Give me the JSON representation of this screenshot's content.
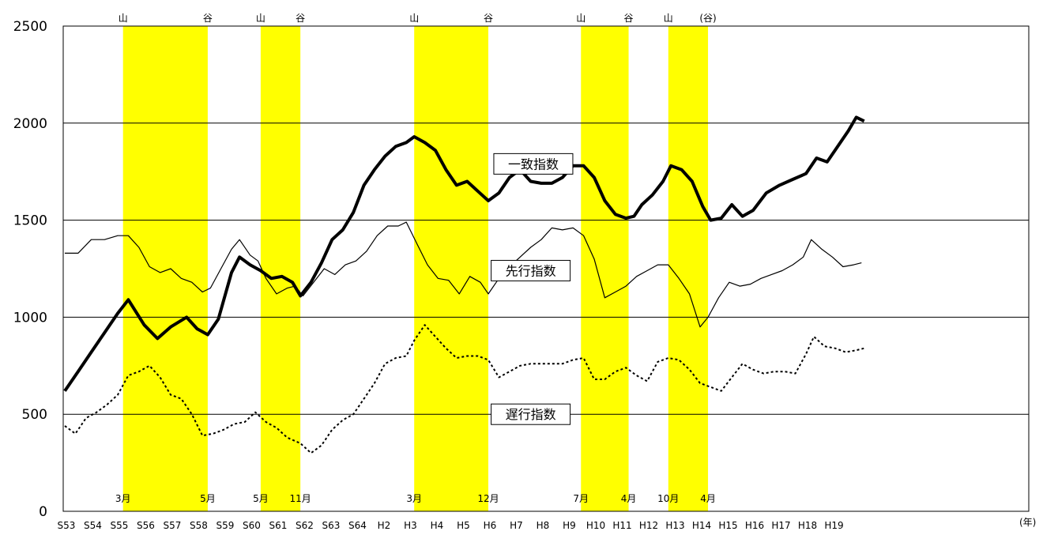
{
  "chart_data": {
    "type": "line",
    "ylim": [
      0,
      2500
    ],
    "yticks": [
      0,
      500,
      1000,
      1500,
      2000,
      2500
    ],
    "grid_y": [
      500,
      1000,
      1500,
      2000
    ],
    "x_unit_label": "(年)",
    "categories": [
      "S53",
      "S54",
      "S55",
      "S56",
      "S57",
      "S58",
      "S59",
      "S60",
      "S61",
      "S62",
      "S63",
      "S64",
      "H2",
      "H3",
      "H4",
      "H5",
      "H6",
      "H7",
      "H8",
      "H9",
      "H10",
      "H11",
      "H12",
      "H13",
      "H14",
      "H15",
      "H16",
      "H17",
      "H18",
      "H19"
    ],
    "recession_bands": [
      {
        "peak_label": "山",
        "trough_label": "谷",
        "start": 2.2,
        "end": 5.4,
        "start_month": "3月",
        "end_month": "5月"
      },
      {
        "peak_label": "山",
        "trough_label": "谷",
        "start": 7.4,
        "end": 8.9,
        "start_month": "5月",
        "end_month": "11月"
      },
      {
        "peak_label": "山",
        "trough_label": "谷",
        "start": 13.2,
        "end": 16.0,
        "start_month": "3月",
        "end_month": "12月"
      },
      {
        "peak_label": "山",
        "trough_label": "谷",
        "start": 19.5,
        "end": 21.3,
        "start_month": "7月",
        "end_month": "4月"
      },
      {
        "peak_label": "山",
        "trough_label": "(谷)",
        "start": 22.8,
        "end": 24.3,
        "start_month": "10月",
        "end_month": "4月"
      }
    ],
    "series": [
      {
        "name": "一致指数",
        "style": "thick",
        "color": "#000000",
        "points": [
          [
            0,
            620
          ],
          [
            0.5,
            720
          ],
          [
            1.0,
            820
          ],
          [
            1.5,
            920
          ],
          [
            2.0,
            1020
          ],
          [
            2.4,
            1090
          ],
          [
            3.0,
            960
          ],
          [
            3.5,
            890
          ],
          [
            4.0,
            950
          ],
          [
            4.6,
            1000
          ],
          [
            5.0,
            940
          ],
          [
            5.4,
            910
          ],
          [
            5.8,
            990
          ],
          [
            6.3,
            1230
          ],
          [
            6.6,
            1310
          ],
          [
            7.0,
            1270
          ],
          [
            7.4,
            1240
          ],
          [
            7.8,
            1200
          ],
          [
            8.2,
            1210
          ],
          [
            8.6,
            1180
          ],
          [
            8.9,
            1110
          ],
          [
            9.3,
            1180
          ],
          [
            9.7,
            1280
          ],
          [
            10.1,
            1400
          ],
          [
            10.5,
            1450
          ],
          [
            10.9,
            1540
          ],
          [
            11.3,
            1680
          ],
          [
            11.7,
            1760
          ],
          [
            12.1,
            1830
          ],
          [
            12.5,
            1880
          ],
          [
            12.9,
            1900
          ],
          [
            13.2,
            1930
          ],
          [
            13.6,
            1900
          ],
          [
            14.0,
            1860
          ],
          [
            14.4,
            1760
          ],
          [
            14.8,
            1680
          ],
          [
            15.2,
            1700
          ],
          [
            15.6,
            1650
          ],
          [
            16.0,
            1600
          ],
          [
            16.4,
            1640
          ],
          [
            16.8,
            1720
          ],
          [
            17.2,
            1760
          ],
          [
            17.6,
            1700
          ],
          [
            18.0,
            1690
          ],
          [
            18.4,
            1690
          ],
          [
            18.8,
            1720
          ],
          [
            19.2,
            1780
          ],
          [
            19.6,
            1780
          ],
          [
            20.0,
            1720
          ],
          [
            20.4,
            1600
          ],
          [
            20.8,
            1530
          ],
          [
            21.2,
            1510
          ],
          [
            21.5,
            1520
          ],
          [
            21.8,
            1580
          ],
          [
            22.2,
            1630
          ],
          [
            22.6,
            1700
          ],
          [
            22.9,
            1780
          ],
          [
            23.3,
            1760
          ],
          [
            23.7,
            1700
          ],
          [
            24.1,
            1570
          ],
          [
            24.4,
            1500
          ],
          [
            24.8,
            1510
          ],
          [
            25.2,
            1580
          ],
          [
            25.6,
            1520
          ],
          [
            26.0,
            1550
          ],
          [
            26.5,
            1640
          ],
          [
            27.0,
            1680
          ],
          [
            27.5,
            1710
          ],
          [
            28.0,
            1740
          ],
          [
            28.4,
            1820
          ],
          [
            28.8,
            1800
          ],
          [
            29.2,
            1880
          ],
          [
            29.6,
            1960
          ],
          [
            29.9,
            2030
          ],
          [
            30.2,
            2010
          ]
        ]
      },
      {
        "name": "先行指数",
        "style": "thin",
        "color": "#000000",
        "points": [
          [
            0,
            1330
          ],
          [
            0.5,
            1330
          ],
          [
            1.0,
            1400
          ],
          [
            1.5,
            1400
          ],
          [
            2.0,
            1420
          ],
          [
            2.4,
            1420
          ],
          [
            2.8,
            1360
          ],
          [
            3.2,
            1260
          ],
          [
            3.6,
            1230
          ],
          [
            4.0,
            1250
          ],
          [
            4.4,
            1200
          ],
          [
            4.8,
            1180
          ],
          [
            5.2,
            1130
          ],
          [
            5.5,
            1150
          ],
          [
            5.9,
            1250
          ],
          [
            6.3,
            1350
          ],
          [
            6.6,
            1400
          ],
          [
            7.0,
            1320
          ],
          [
            7.3,
            1290
          ],
          [
            7.6,
            1200
          ],
          [
            8.0,
            1120
          ],
          [
            8.4,
            1150
          ],
          [
            8.7,
            1160
          ],
          [
            9.0,
            1110
          ],
          [
            9.4,
            1180
          ],
          [
            9.8,
            1250
          ],
          [
            10.2,
            1220
          ],
          [
            10.6,
            1270
          ],
          [
            11.0,
            1290
          ],
          [
            11.4,
            1340
          ],
          [
            11.8,
            1420
          ],
          [
            12.2,
            1470
          ],
          [
            12.6,
            1470
          ],
          [
            12.9,
            1490
          ],
          [
            13.3,
            1380
          ],
          [
            13.7,
            1270
          ],
          [
            14.1,
            1200
          ],
          [
            14.5,
            1190
          ],
          [
            14.9,
            1120
          ],
          [
            15.3,
            1210
          ],
          [
            15.7,
            1180
          ],
          [
            16.0,
            1120
          ],
          [
            16.4,
            1200
          ],
          [
            16.8,
            1260
          ],
          [
            17.2,
            1310
          ],
          [
            17.6,
            1360
          ],
          [
            18.0,
            1400
          ],
          [
            18.4,
            1460
          ],
          [
            18.8,
            1450
          ],
          [
            19.2,
            1460
          ],
          [
            19.6,
            1420
          ],
          [
            20.0,
            1300
          ],
          [
            20.4,
            1100
          ],
          [
            20.8,
            1130
          ],
          [
            21.2,
            1160
          ],
          [
            21.6,
            1210
          ],
          [
            22.0,
            1240
          ],
          [
            22.4,
            1270
          ],
          [
            22.8,
            1270
          ],
          [
            23.2,
            1200
          ],
          [
            23.6,
            1120
          ],
          [
            24.0,
            950
          ],
          [
            24.3,
            1000
          ],
          [
            24.7,
            1100
          ],
          [
            25.1,
            1180
          ],
          [
            25.5,
            1160
          ],
          [
            25.9,
            1170
          ],
          [
            26.3,
            1200
          ],
          [
            26.7,
            1220
          ],
          [
            27.1,
            1240
          ],
          [
            27.5,
            1270
          ],
          [
            27.9,
            1310
          ],
          [
            28.2,
            1400
          ],
          [
            28.6,
            1350
          ],
          [
            29.0,
            1310
          ],
          [
            29.4,
            1260
          ],
          [
            29.8,
            1270
          ],
          [
            30.1,
            1280
          ]
        ]
      },
      {
        "name": "遅行指数",
        "style": "dotted",
        "color": "#000000",
        "points": [
          [
            0,
            440
          ],
          [
            0.4,
            400
          ],
          [
            0.8,
            480
          ],
          [
            1.2,
            510
          ],
          [
            1.6,
            550
          ],
          [
            2.0,
            600
          ],
          [
            2.4,
            700
          ],
          [
            2.8,
            720
          ],
          [
            3.2,
            750
          ],
          [
            3.6,
            690
          ],
          [
            4.0,
            600
          ],
          [
            4.4,
            580
          ],
          [
            4.8,
            500
          ],
          [
            5.2,
            390
          ],
          [
            5.6,
            400
          ],
          [
            6.0,
            420
          ],
          [
            6.4,
            450
          ],
          [
            6.8,
            460
          ],
          [
            7.2,
            510
          ],
          [
            7.6,
            460
          ],
          [
            8.0,
            430
          ],
          [
            8.4,
            380
          ],
          [
            8.9,
            350
          ],
          [
            9.3,
            300
          ],
          [
            9.7,
            340
          ],
          [
            10.1,
            420
          ],
          [
            10.5,
            470
          ],
          [
            10.9,
            500
          ],
          [
            11.3,
            580
          ],
          [
            11.7,
            660
          ],
          [
            12.1,
            760
          ],
          [
            12.5,
            790
          ],
          [
            12.9,
            800
          ],
          [
            13.2,
            880
          ],
          [
            13.6,
            960
          ],
          [
            14.0,
            900
          ],
          [
            14.4,
            840
          ],
          [
            14.8,
            790
          ],
          [
            15.2,
            800
          ],
          [
            15.6,
            800
          ],
          [
            16.0,
            780
          ],
          [
            16.4,
            690
          ],
          [
            16.8,
            720
          ],
          [
            17.2,
            750
          ],
          [
            17.6,
            760
          ],
          [
            18.0,
            760
          ],
          [
            18.4,
            760
          ],
          [
            18.8,
            760
          ],
          [
            19.2,
            780
          ],
          [
            19.6,
            790
          ],
          [
            20.0,
            680
          ],
          [
            20.4,
            680
          ],
          [
            20.8,
            720
          ],
          [
            21.2,
            740
          ],
          [
            21.6,
            700
          ],
          [
            22.0,
            670
          ],
          [
            22.4,
            770
          ],
          [
            22.8,
            790
          ],
          [
            23.2,
            780
          ],
          [
            23.6,
            730
          ],
          [
            24.0,
            660
          ],
          [
            24.4,
            640
          ],
          [
            24.8,
            620
          ],
          [
            25.2,
            690
          ],
          [
            25.6,
            760
          ],
          [
            26.0,
            730
          ],
          [
            26.4,
            710
          ],
          [
            26.8,
            720
          ],
          [
            27.2,
            720
          ],
          [
            27.6,
            710
          ],
          [
            28.0,
            810
          ],
          [
            28.3,
            900
          ],
          [
            28.7,
            850
          ],
          [
            29.1,
            840
          ],
          [
            29.5,
            820
          ],
          [
            29.9,
            830
          ],
          [
            30.2,
            840
          ]
        ]
      }
    ],
    "series_labels": [
      {
        "text": "一致指数",
        "x": 17.7,
        "y": 1790
      },
      {
        "text": "先行指数",
        "x": 17.6,
        "y": 1240
      },
      {
        "text": "遅行指数",
        "x": 17.6,
        "y": 500
      }
    ]
  }
}
